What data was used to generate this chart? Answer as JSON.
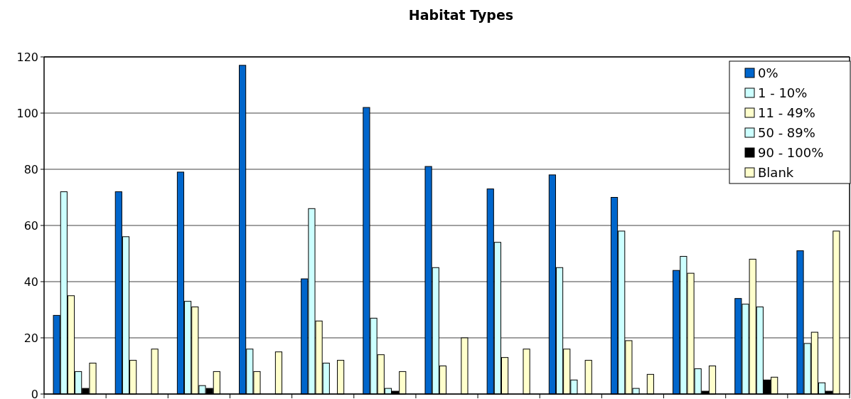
{
  "chart_data": {
    "type": "bar",
    "title": "Habitat Types",
    "categories": [
      null,
      null,
      null,
      null,
      null,
      null,
      null,
      null,
      null,
      null,
      null,
      null,
      null
    ],
    "series": [
      {
        "name": "0%",
        "color": "#0066cc",
        "values": [
          28,
          72,
          79,
          117,
          41,
          102,
          81,
          73,
          78,
          70,
          44,
          34,
          51
        ]
      },
      {
        "name": "1 - 10%",
        "color": "#ccffff",
        "values": [
          72,
          56,
          33,
          16,
          66,
          27,
          45,
          54,
          45,
          58,
          49,
          32,
          18
        ]
      },
      {
        "name": "11 - 49%",
        "color": "#ffffcc",
        "values": [
          35,
          12,
          31,
          8,
          26,
          14,
          10,
          13,
          16,
          19,
          43,
          48,
          22
        ]
      },
      {
        "name": "50 - 89%",
        "color": "#ccffff",
        "values": [
          8,
          0,
          3,
          0,
          11,
          2,
          0,
          0,
          5,
          2,
          9,
          31,
          4
        ]
      },
      {
        "name": "90 - 100%",
        "color": "#000000",
        "values": [
          2,
          0,
          2,
          0,
          0,
          1,
          0,
          0,
          0,
          0,
          1,
          5,
          1
        ]
      },
      {
        "name": "Blank",
        "color": "#ffffcc",
        "values": [
          11,
          16,
          8,
          15,
          12,
          8,
          20,
          16,
          12,
          7,
          10,
          6,
          58
        ]
      }
    ],
    "ylim": [
      0,
      120
    ],
    "yticks": [
      0,
      20,
      40,
      60,
      80,
      100,
      120
    ],
    "grid": "y",
    "legend": "top right"
  }
}
